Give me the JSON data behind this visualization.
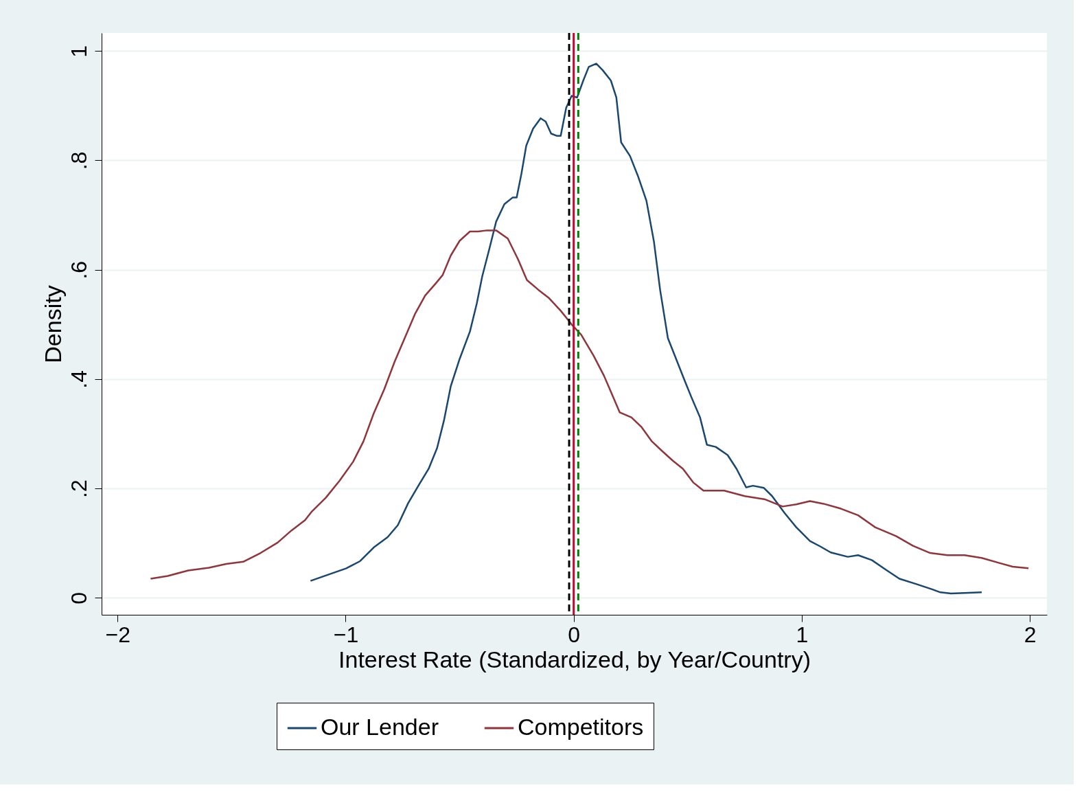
{
  "chart_data": {
    "type": "line",
    "xlabel": "Interest Rate (Standardized, by Year/Country)",
    "ylabel": "Density",
    "xlim": [
      -2.07,
      2.075
    ],
    "ylim": [
      -0.031,
      1.033
    ],
    "xticks": [
      -2,
      -1,
      0,
      1,
      2
    ],
    "yticks": [
      0,
      {
        "value": 0.2,
        "label": ".2"
      },
      {
        "value": 0.4,
        "label": ".4"
      },
      {
        "value": 0.6,
        "label": ".6"
      },
      {
        "value": 0.8,
        "label": ".8"
      },
      1
    ],
    "grid": "y",
    "legend": "bottom",
    "line_style": "solid",
    "marker": "none",
    "series": [
      {
        "name": "Our Lender",
        "color": "#1a476f",
        "x": [
          -1.154,
          -0.997,
          -0.937,
          -0.877,
          -0.816,
          -0.771,
          -0.726,
          -0.681,
          -0.636,
          -0.599,
          -0.569,
          -0.539,
          -0.5,
          -0.455,
          -0.425,
          -0.401,
          -0.37,
          -0.34,
          -0.304,
          -0.268,
          -0.25,
          -0.229,
          -0.208,
          -0.178,
          -0.145,
          -0.123,
          -0.099,
          -0.075,
          -0.057,
          -0.033,
          -0.009,
          0.015,
          0.042,
          0.066,
          0.099,
          0.127,
          0.163,
          0.187,
          0.208,
          0.247,
          0.283,
          0.319,
          0.352,
          0.379,
          0.413,
          0.449,
          0.485,
          0.515,
          0.554,
          0.584,
          0.623,
          0.675,
          0.714,
          0.756,
          0.786,
          0.834,
          0.87,
          0.925,
          0.976,
          1.036,
          1.081,
          1.127,
          1.202,
          1.247,
          1.307,
          1.367,
          1.428,
          1.503,
          1.569,
          1.608,
          1.654,
          1.714,
          1.789
        ],
        "values": [
          0.031,
          0.054,
          0.067,
          0.092,
          0.111,
          0.133,
          0.173,
          0.205,
          0.236,
          0.274,
          0.324,
          0.387,
          0.437,
          0.487,
          0.538,
          0.588,
          0.638,
          0.688,
          0.72,
          0.732,
          0.732,
          0.776,
          0.827,
          0.858,
          0.877,
          0.871,
          0.849,
          0.845,
          0.845,
          0.896,
          0.918,
          0.915,
          0.946,
          0.971,
          0.977,
          0.965,
          0.946,
          0.915,
          0.833,
          0.808,
          0.77,
          0.726,
          0.651,
          0.563,
          0.475,
          0.437,
          0.399,
          0.368,
          0.33,
          0.28,
          0.276,
          0.261,
          0.236,
          0.202,
          0.205,
          0.201,
          0.186,
          0.155,
          0.129,
          0.104,
          0.094,
          0.083,
          0.075,
          0.078,
          0.069,
          0.052,
          0.035,
          0.025,
          0.016,
          0.01,
          0.008,
          0.009,
          0.01
        ]
      },
      {
        "name": "Competitors",
        "color": "#90353b",
        "x": [
          -1.855,
          -1.78,
          -1.69,
          -1.599,
          -1.524,
          -1.449,
          -1.373,
          -1.298,
          -1.238,
          -1.178,
          -1.148,
          -1.087,
          -1.027,
          -0.967,
          -0.922,
          -0.877,
          -0.831,
          -0.786,
          -0.741,
          -0.696,
          -0.651,
          -0.605,
          -0.575,
          -0.539,
          -0.5,
          -0.455,
          -0.419,
          -0.38,
          -0.34,
          -0.289,
          -0.244,
          -0.205,
          -0.154,
          -0.108,
          -0.057,
          -0.009,
          0.033,
          0.087,
          0.133,
          0.163,
          0.202,
          0.253,
          0.298,
          0.343,
          0.389,
          0.434,
          0.479,
          0.524,
          0.569,
          0.66,
          0.75,
          0.84,
          0.916,
          0.976,
          1.036,
          1.096,
          1.172,
          1.247,
          1.322,
          1.413,
          1.488,
          1.563,
          1.639,
          1.714,
          1.789,
          1.864,
          1.925,
          1.994
        ],
        "values": [
          0.035,
          0.04,
          0.05,
          0.055,
          0.062,
          0.066,
          0.082,
          0.101,
          0.123,
          0.142,
          0.158,
          0.183,
          0.214,
          0.249,
          0.286,
          0.337,
          0.381,
          0.431,
          0.475,
          0.519,
          0.553,
          0.575,
          0.59,
          0.626,
          0.653,
          0.67,
          0.67,
          0.672,
          0.672,
          0.657,
          0.619,
          0.581,
          0.563,
          0.548,
          0.525,
          0.5,
          0.481,
          0.443,
          0.406,
          0.377,
          0.339,
          0.33,
          0.312,
          0.286,
          0.268,
          0.251,
          0.236,
          0.211,
          0.196,
          0.196,
          0.186,
          0.18,
          0.167,
          0.171,
          0.177,
          0.172,
          0.163,
          0.151,
          0.129,
          0.113,
          0.095,
          0.082,
          0.078,
          0.078,
          0.073,
          0.064,
          0.057,
          0.054
        ]
      }
    ],
    "ref_lines": [
      {
        "axis": "x",
        "value": -0.02,
        "color": "#000000",
        "line_style": "dashed"
      },
      {
        "axis": "x",
        "value": 0,
        "color": "#c10534",
        "line_style": "solid"
      },
      {
        "axis": "x",
        "value": 0.02,
        "color": "#008000",
        "line_style": "dashed"
      }
    ]
  }
}
